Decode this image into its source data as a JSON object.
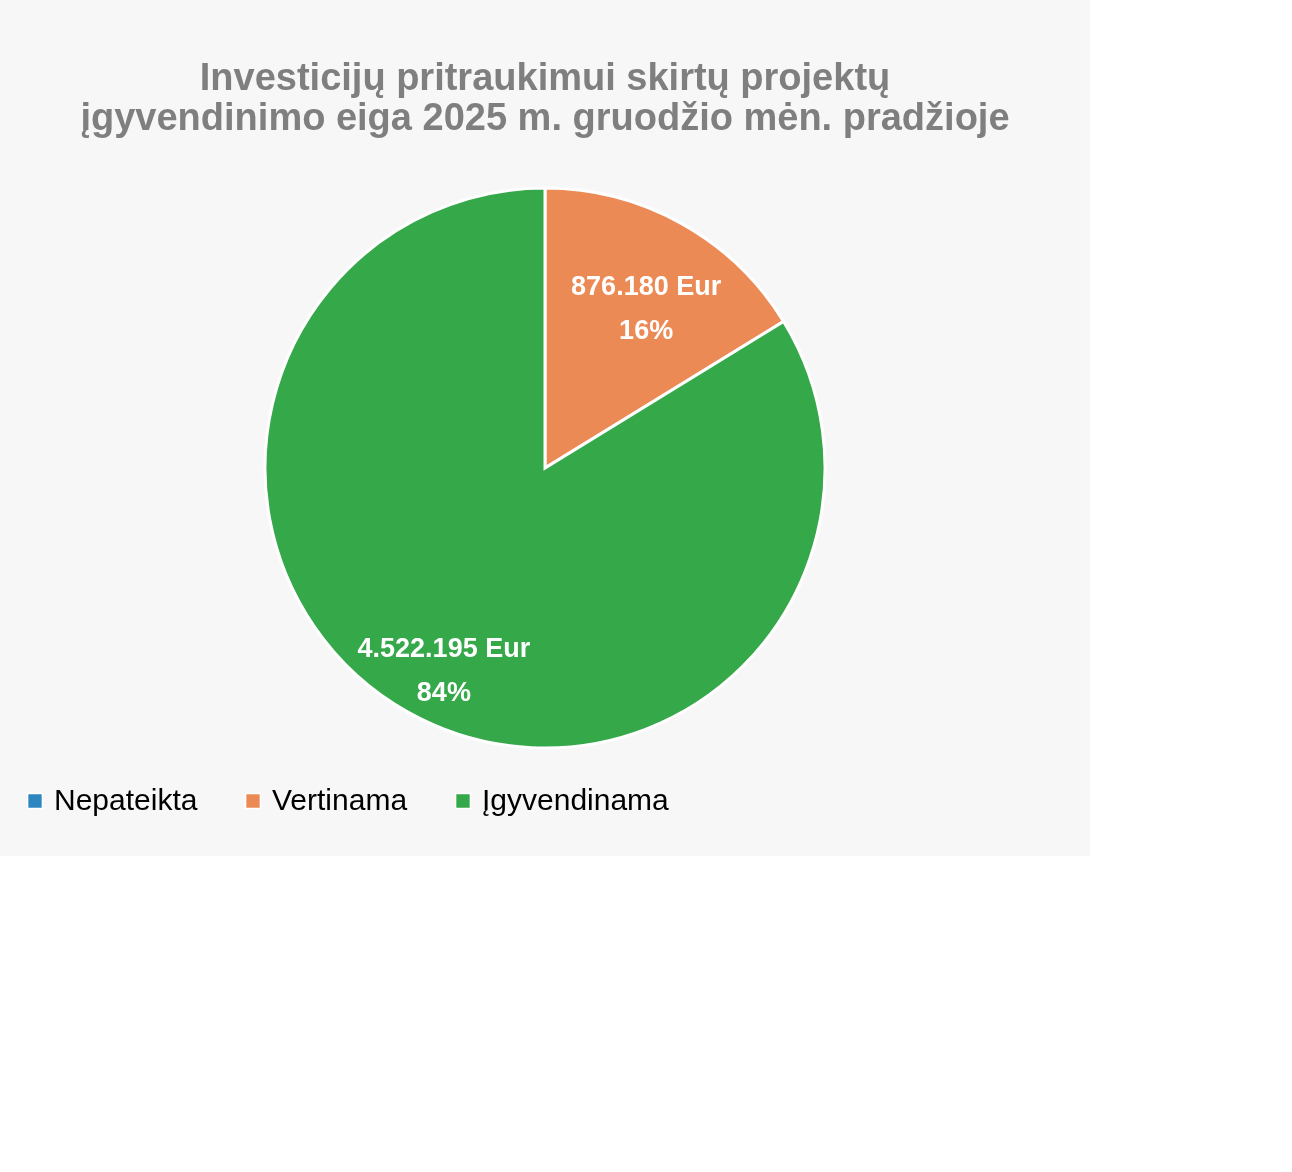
{
  "chart_data": {
    "type": "pie",
    "title": [
      "Investicijų pritraukimui skirtų projektų",
      "įgyvendinimo eiga 2025 m. gruodžio mėn. pradžioje"
    ],
    "categories": [
      "Nepateikta",
      "Vertinama",
      "Įgyvendinama"
    ],
    "values": [
      0,
      876180,
      4522195
    ],
    "colors": [
      "#2e86c1",
      "#ec8a55",
      "#35a84a"
    ],
    "value_labels": [
      null,
      "876.180 Eur\n16%",
      "4.522.195 Eur\n84%"
    ],
    "legend": "bottom"
  }
}
